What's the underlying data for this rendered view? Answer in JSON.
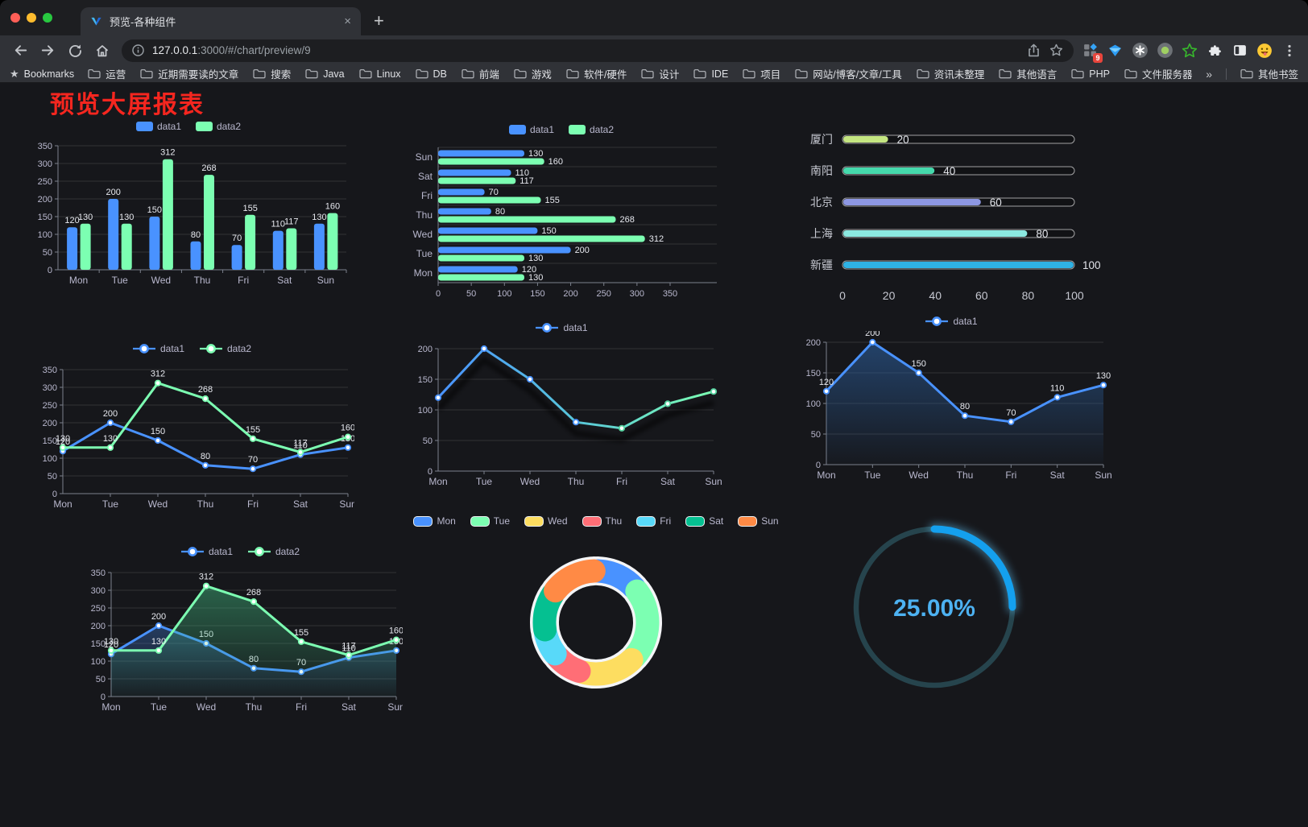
{
  "browser": {
    "tab_title": "预览-各种组件",
    "url_host": "127.0.0.1",
    "url_rest": ":3000/#/chart/preview/9",
    "new_tab_label": "+",
    "tab_close_label": "×",
    "bookmarks_label": "Bookmarks",
    "bookmarks": [
      "运营",
      "近期需要读的文章",
      "搜索",
      "Java",
      "Linux",
      "DB",
      "前端",
      "游戏",
      "软件/硬件",
      "设计",
      "IDE",
      "项目",
      "网站/博客/文章/工具",
      "资讯未整理",
      "其他语言",
      "PHP",
      "文件服务器"
    ],
    "bookmarks_overflow": "»",
    "other_bookmarks": "其他书签",
    "extension_badge": "9"
  },
  "page": {
    "title": "预览大屏报表",
    "title_color": "#f5261f",
    "background": "#16171b"
  },
  "chart_data": [
    {
      "id": "bar-vertical",
      "type": "bar",
      "legend": "rect",
      "categories": [
        "Mon",
        "Tue",
        "Wed",
        "Thu",
        "Fri",
        "Sat",
        "Sun"
      ],
      "series": [
        {
          "name": "data1",
          "color": "#4992ff",
          "values": [
            120,
            200,
            150,
            80,
            70,
            110,
            130
          ]
        },
        {
          "name": "data2",
          "color": "#7cffb2",
          "values": [
            130,
            130,
            312,
            268,
            155,
            117,
            160
          ]
        }
      ],
      "ylim": [
        0,
        350
      ],
      "ytick": 50
    },
    {
      "id": "bar-horizontal",
      "type": "bar-horizontal",
      "legend": "rect",
      "categories": [
        "Mon",
        "Tue",
        "Wed",
        "Thu",
        "Fri",
        "Sat",
        "Sun"
      ],
      "series": [
        {
          "name": "data1",
          "color": "#4992ff",
          "values": [
            120,
            200,
            150,
            80,
            70,
            110,
            130
          ]
        },
        {
          "name": "data2",
          "color": "#7cffb2",
          "values": [
            130,
            130,
            312,
            268,
            155,
            117,
            160
          ]
        }
      ],
      "xlim": [
        0,
        350
      ],
      "xtick": 50
    },
    {
      "id": "progress",
      "type": "progress-bar",
      "categories": [
        "厦门",
        "南阳",
        "北京",
        "上海",
        "新疆"
      ],
      "values": [
        20,
        40,
        60,
        80,
        100
      ],
      "colors": [
        "#c4e581",
        "#45d9ac",
        "#8d97e3",
        "#8be8e0",
        "#2fb2e5"
      ],
      "xlim": [
        0,
        100
      ],
      "xticks": [
        0,
        20,
        40,
        60,
        80,
        100
      ]
    },
    {
      "id": "line-basic",
      "type": "line",
      "legend": "marker",
      "show_labels": true,
      "categories": [
        "Mon",
        "Tue",
        "Wed",
        "Thu",
        "Fri",
        "Sat",
        "Sun"
      ],
      "series": [
        {
          "name": "data1",
          "color": "#4992ff",
          "values": [
            120,
            200,
            150,
            80,
            70,
            110,
            130
          ]
        },
        {
          "name": "data2",
          "color": "#7cffb2",
          "values": [
            130,
            130,
            312,
            268,
            155,
            117,
            160
          ]
        }
      ],
      "ylim": [
        0,
        350
      ],
      "ytick": 50
    },
    {
      "id": "line-gradient",
      "type": "line",
      "legend": "marker",
      "show_labels": false,
      "shadow": true,
      "categories": [
        "Mon",
        "Tue",
        "Wed",
        "Thu",
        "Fri",
        "Sat",
        "Sun"
      ],
      "series": [
        {
          "name": "data1",
          "color": "#4992ff",
          "gradient": [
            "#4992ff",
            "#58c6d9",
            "#7cffb2"
          ],
          "values": [
            120,
            200,
            150,
            80,
            70,
            110,
            130
          ]
        }
      ],
      "ylim": [
        0,
        200
      ],
      "ytick": 50
    },
    {
      "id": "line-area",
      "type": "line",
      "legend": "marker",
      "show_labels": true,
      "categories": [
        "Mon",
        "Tue",
        "Wed",
        "Thu",
        "Fri",
        "Sat",
        "Sun"
      ],
      "series": [
        {
          "name": "data1",
          "color": "#4992ff",
          "area": [
            "rgba(44,95,158,0.60)",
            "rgba(44,95,158,0.03)"
          ],
          "values": [
            120,
            200,
            150,
            80,
            70,
            110,
            130
          ]
        }
      ],
      "ylim": [
        0,
        200
      ],
      "ytick": 50
    },
    {
      "id": "line-area-two",
      "type": "line",
      "legend": "marker",
      "show_labels": true,
      "categories": [
        "Mon",
        "Tue",
        "Wed",
        "Thu",
        "Fri",
        "Sat",
        "Sun"
      ],
      "series": [
        {
          "name": "data1",
          "color": "#4992ff",
          "area": [
            "rgba(73,146,255,0.30)",
            "rgba(73,146,255,0.02)"
          ],
          "values": [
            120,
            200,
            150,
            80,
            70,
            110,
            130
          ]
        },
        {
          "name": "data2",
          "color": "#7cffb2",
          "area": [
            "rgba(66,190,130,0.45)",
            "rgba(66,190,130,0.03)"
          ],
          "values": [
            130,
            130,
            312,
            268,
            155,
            117,
            160
          ]
        }
      ],
      "ylim": [
        0,
        350
      ],
      "ytick": 50
    },
    {
      "id": "pie-donut",
      "type": "pie",
      "legend": "rect",
      "labels": [
        "Mon",
        "Tue",
        "Wed",
        "Thu",
        "Fri",
        "Sat",
        "Sun"
      ],
      "values": [
        120,
        200,
        150,
        80,
        70,
        110,
        130
      ],
      "colors": [
        "#4992ff",
        "#7cffb2",
        "#fddd60",
        "#ff6e76",
        "#58d9f9",
        "#05c091",
        "#ff8a45"
      ]
    },
    {
      "id": "gauge",
      "type": "gauge",
      "value": 25,
      "label": "25.00%",
      "color": "#14a0ee",
      "glow_color": "#66ccff",
      "track_color": "#26444d",
      "text_color": "#4db2f2"
    }
  ]
}
